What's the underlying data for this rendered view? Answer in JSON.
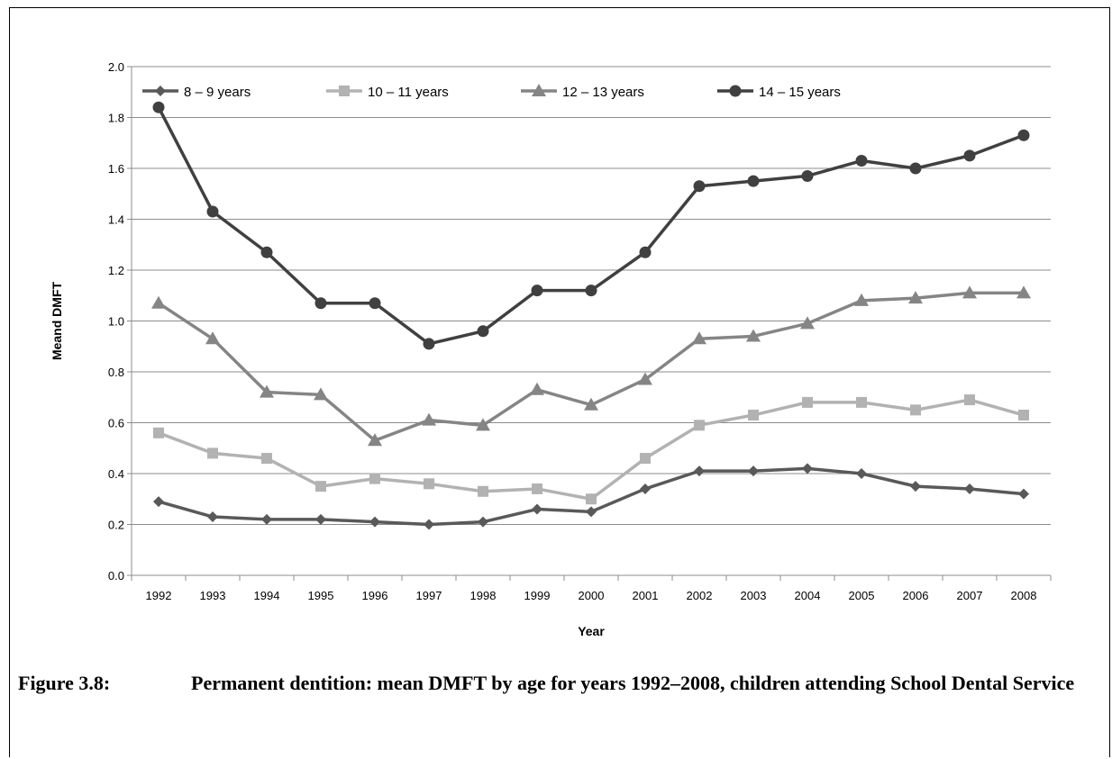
{
  "caption": {
    "label": "Figure 3.8:",
    "text": "Permanent dentition: mean DMFT by age for years 1992–2008, children attending School Dental Service"
  },
  "chart_data": {
    "type": "line",
    "xlabel": "Year",
    "ylabel": "Meand DMFT",
    "ylim": [
      0,
      2.0
    ],
    "yticks": [
      "0.0",
      "0.2",
      "0.4",
      "0.6",
      "0.8",
      "1.0",
      "1.2",
      "1.4",
      "1.6",
      "1.8",
      "2.0"
    ],
    "grid": true,
    "legend_position": "top-left",
    "categories": [
      "1992",
      "1993",
      "1994",
      "1995",
      "1996",
      "1997",
      "1998",
      "1999",
      "2000",
      "2001",
      "2002",
      "2003",
      "2004",
      "2005",
      "2006",
      "2007",
      "2008"
    ],
    "series": [
      {
        "name": "8 – 9 years",
        "marker": "diamond",
        "color": "#595959",
        "values": [
          0.29,
          0.23,
          0.22,
          0.22,
          0.21,
          0.2,
          0.21,
          0.26,
          0.25,
          0.34,
          0.41,
          0.41,
          0.42,
          0.4,
          0.35,
          0.34,
          0.32
        ]
      },
      {
        "name": "10 – 11 years",
        "marker": "square",
        "color": "#b2b2b2",
        "values": [
          0.56,
          0.48,
          0.46,
          0.35,
          0.38,
          0.36,
          0.33,
          0.34,
          0.3,
          0.46,
          0.59,
          0.63,
          0.68,
          0.68,
          0.65,
          0.69,
          0.63
        ]
      },
      {
        "name": "12 – 13 years",
        "marker": "triangle",
        "color": "#858585",
        "values": [
          1.07,
          0.93,
          0.72,
          0.71,
          0.53,
          0.61,
          0.59,
          0.73,
          0.67,
          0.77,
          0.93,
          0.94,
          0.99,
          1.08,
          1.09,
          1.11,
          1.11
        ]
      },
      {
        "name": "14 – 15 years",
        "marker": "circle",
        "color": "#404040",
        "values": [
          1.84,
          1.43,
          1.27,
          1.07,
          1.07,
          0.91,
          0.96,
          1.12,
          1.12,
          1.27,
          1.53,
          1.55,
          1.57,
          1.63,
          1.6,
          1.65,
          1.73
        ]
      }
    ]
  }
}
